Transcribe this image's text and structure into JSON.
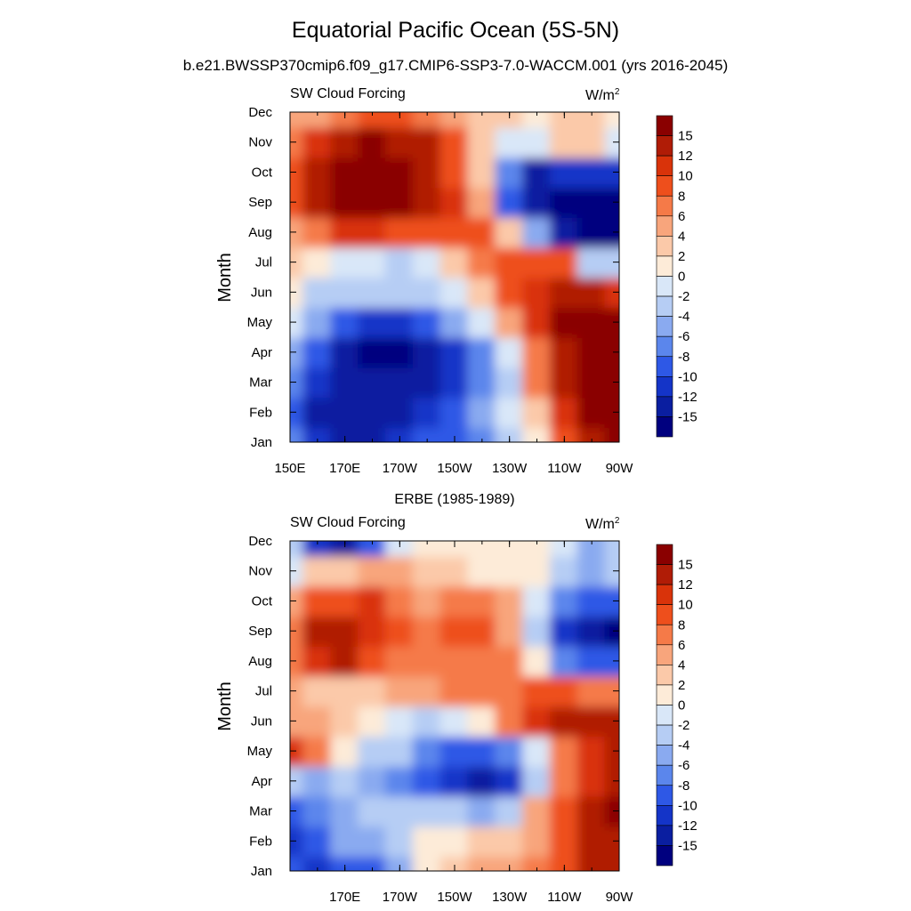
{
  "title": "Equatorial Pacific Ocean (5S-5N)",
  "subtitle": "b.e21.BWSSP370cmip6.f09_g17.CMIP6-SSP3-7.0-WACCM.001 (yrs 2016-2045)",
  "colorbar": {
    "labels": [
      "15",
      "12",
      "10",
      "8",
      "6",
      "4",
      "2",
      "0",
      "-2",
      "-4",
      "-6",
      "-8",
      "-10",
      "-12",
      "-15"
    ],
    "colors": [
      "#8a0000",
      "#b01c06",
      "#d9330a",
      "#ee4f1c",
      "#f57a48",
      "#f8a57c",
      "#fbc9a9",
      "#fdebd8",
      "#d9e7f8",
      "#b6cdf4",
      "#8aaaf0",
      "#5b86ec",
      "#2e58e6",
      "#1434c8",
      "#0a1ea0",
      "#00007f"
    ]
  },
  "chart_data": [
    {
      "type": "heatmap",
      "title": "",
      "left_label": "SW Cloud Forcing",
      "units_label": "W/m",
      "units_sup": "2",
      "ylabel": "Month",
      "xlabel": "",
      "x_tick_labels": [
        "150E",
        "170E",
        "170W",
        "150W",
        "130W",
        "110W",
        "90W"
      ],
      "y_tick_labels": [
        "Jan",
        "Feb",
        "Mar",
        "Apr",
        "May",
        "Jun",
        "Jul",
        "Aug",
        "Sep",
        "Oct",
        "Nov",
        "Dec"
      ],
      "x": [
        150,
        160,
        170,
        180,
        190,
        200,
        210,
        220,
        230,
        240,
        250,
        260,
        270
      ],
      "y": [
        1,
        2,
        3,
        4,
        5,
        6,
        7,
        8,
        9,
        10,
        11,
        12
      ],
      "z": [
        [
          -8,
          -12,
          -14,
          -13,
          -11,
          -10,
          -10,
          -7,
          -3,
          1,
          8,
          14,
          16
        ],
        [
          -9,
          -14,
          -13,
          -14,
          -13,
          -11,
          -9,
          -6,
          -2,
          3,
          10,
          15,
          16
        ],
        [
          -8,
          -12,
          -14,
          -15,
          -15,
          -13,
          -11,
          -8,
          -3,
          7,
          13,
          16,
          17
        ],
        [
          -6,
          -10,
          -13,
          -16,
          -16,
          -15,
          -12,
          -7,
          -1,
          7,
          14,
          16,
          17
        ],
        [
          -2,
          -6,
          -9,
          -11,
          -12,
          -10,
          -6,
          -2,
          4,
          10,
          15,
          16,
          16
        ],
        [
          0,
          -3,
          -4,
          -3,
          -3,
          -3,
          -2,
          3,
          8,
          11,
          13,
          12,
          11
        ],
        [
          2,
          0,
          -2,
          -2,
          -3,
          -1,
          3,
          7,
          8,
          9,
          8,
          -4,
          -4
        ],
        [
          5,
          7,
          10,
          10,
          8,
          8,
          9,
          8,
          2,
          -6,
          -15,
          -17,
          -16
        ],
        [
          8,
          13,
          16,
          16,
          15,
          12,
          10,
          4,
          -10,
          -15,
          -17,
          -17,
          -16
        ],
        [
          8,
          13,
          17,
          17,
          16,
          13,
          9,
          2,
          -8,
          -13,
          -12,
          -11,
          -12
        ],
        [
          6,
          10,
          14,
          15,
          14,
          12,
          8,
          3,
          -2,
          -2,
          2,
          2,
          -2
        ],
        [
          4,
          5,
          6,
          8,
          8,
          7,
          5,
          3,
          2,
          1,
          3,
          2,
          1
        ]
      ]
    },
    {
      "type": "heatmap",
      "title": "ERBE (1985-1989)",
      "left_label": "SW Cloud Forcing",
      "units_label": "W/m",
      "units_sup": "2",
      "ylabel": "Month",
      "xlabel": "",
      "x_tick_labels": [
        "170E",
        "170W",
        "150W",
        "130W",
        "110W",
        "90W"
      ],
      "y_tick_labels": [
        "Jan",
        "Feb",
        "Mar",
        "Apr",
        "May",
        "Jun",
        "Jul",
        "Aug",
        "Sep",
        "Oct",
        "Nov",
        "Dec"
      ],
      "x": [
        150,
        160,
        170,
        180,
        190,
        200,
        210,
        220,
        230,
        240,
        250,
        260,
        270
      ],
      "y": [
        1,
        2,
        3,
        4,
        5,
        6,
        7,
        8,
        9,
        10,
        11,
        12
      ],
      "z": [
        [
          -10,
          -12,
          -10,
          -9,
          -5,
          1,
          3,
          4,
          4,
          6,
          8,
          12,
          14
        ],
        [
          -12,
          -10,
          -6,
          -5,
          -3,
          0,
          1,
          2,
          2,
          4,
          8,
          12,
          14
        ],
        [
          -9,
          -7,
          -5,
          -4,
          -3,
          -4,
          -4,
          -5,
          -4,
          4,
          9,
          12,
          15
        ],
        [
          -4,
          -5,
          -4,
          -6,
          -8,
          -10,
          -12,
          -13,
          -12,
          -4,
          6,
          10,
          12
        ],
        [
          10,
          6,
          1,
          -3,
          -4,
          -7,
          -9,
          -10,
          -7,
          -1,
          6,
          11,
          13
        ],
        [
          4,
          4,
          3,
          1,
          -1,
          -3,
          -2,
          1,
          6,
          10,
          12,
          14,
          13
        ],
        [
          4,
          2,
          2,
          3,
          5,
          5,
          6,
          6,
          6,
          8,
          8,
          7,
          6
        ],
        [
          6,
          11,
          12,
          9,
          7,
          6,
          7,
          6,
          7,
          1,
          -8,
          -10,
          -10
        ],
        [
          6,
          12,
          13,
          11,
          8,
          6,
          8,
          8,
          4,
          -4,
          -11,
          -13,
          -16
        ],
        [
          5,
          8,
          9,
          10,
          7,
          5,
          7,
          7,
          4,
          -1,
          -8,
          -10,
          -10
        ],
        [
          -2,
          2,
          3,
          4,
          5,
          3,
          2,
          1,
          1,
          0,
          -3,
          -5,
          -3
        ],
        [
          -4,
          -12,
          -14,
          -10,
          -2,
          1,
          0,
          0,
          0,
          1,
          -1,
          -5,
          -4
        ]
      ]
    }
  ]
}
